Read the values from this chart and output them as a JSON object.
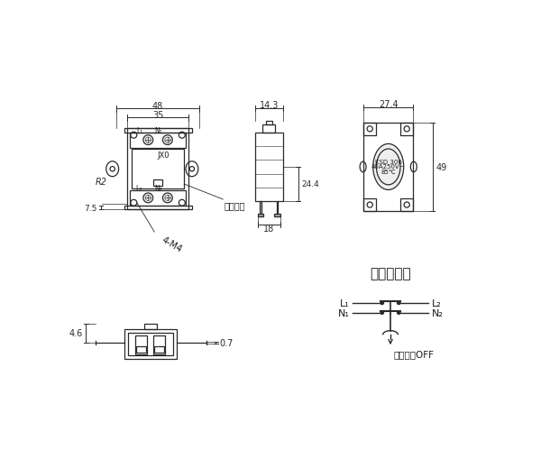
{
  "bg_color": "#ffffff",
  "line_color": "#2a2a2a",
  "dim_color": "#2a2a2a",
  "text_color": "#1a1a1a",
  "annotations": {
    "dim_48": "48",
    "dim_35": "35",
    "dim_14_3": "14.3",
    "dim_27_4": "27.4",
    "dim_24_4": "24.4",
    "dim_49": "49",
    "dim_18": "18",
    "dim_7_5": "7.5",
    "dim_R2": "R2",
    "dim_4M4": "4-M4",
    "dim_reset": "手动复位",
    "dim_4_6": "4.6",
    "dim_0_7": "0.7",
    "diagram_title": "断开示意图",
    "L1": "L₁",
    "L2": "L₂",
    "N1": "N₁",
    "N2": "N₂",
    "temp_off": "温度上升OFF"
  }
}
